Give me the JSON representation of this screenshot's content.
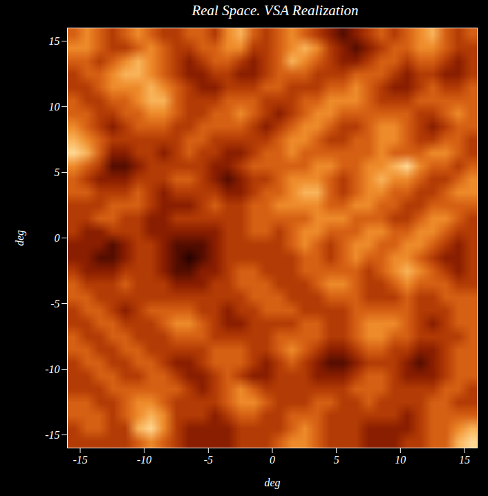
{
  "chart_data": {
    "type": "heatmap",
    "title": "Real Space. VSA Realization",
    "xlabel": "deg",
    "ylabel": "deg",
    "xlim": [
      -16,
      16
    ],
    "ylim": [
      -16,
      16
    ],
    "xticks": [
      -15,
      -10,
      -5,
      0,
      5,
      10,
      15
    ],
    "yticks": [
      -15,
      -10,
      -5,
      0,
      5,
      10,
      15
    ],
    "zlim": [
      0,
      9
    ],
    "cells": [
      [
        5,
        6,
        5,
        4,
        5,
        6,
        5,
        4,
        4,
        5,
        5,
        4,
        6,
        7,
        5,
        4,
        5,
        6,
        5,
        4,
        3,
        2,
        3,
        4,
        5,
        4,
        5,
        6,
        7,
        5,
        4,
        5
      ],
      [
        6,
        6,
        5,
        4,
        4,
        5,
        6,
        5,
        4,
        4,
        5,
        5,
        6,
        6,
        4,
        4,
        5,
        6,
        7,
        6,
        4,
        3,
        2,
        3,
        4,
        5,
        5,
        6,
        6,
        5,
        4,
        4
      ],
      [
        5,
        5,
        4,
        5,
        6,
        7,
        6,
        5,
        4,
        3,
        4,
        5,
        5,
        4,
        3,
        4,
        5,
        7,
        6,
        5,
        4,
        3,
        3,
        4,
        5,
        5,
        4,
        5,
        5,
        4,
        3,
        4
      ],
      [
        4,
        5,
        5,
        6,
        7,
        7,
        6,
        5,
        4,
        3,
        3,
        4,
        4,
        3,
        3,
        4,
        5,
        5,
        5,
        4,
        4,
        4,
        5,
        5,
        5,
        4,
        3,
        4,
        4,
        3,
        3,
        4
      ],
      [
        4,
        4,
        5,
        6,
        6,
        6,
        7,
        6,
        5,
        4,
        3,
        3,
        4,
        4,
        4,
        5,
        5,
        4,
        4,
        4,
        5,
        5,
        6,
        5,
        4,
        3,
        3,
        4,
        5,
        4,
        4,
        5
      ],
      [
        5,
        4,
        4,
        5,
        5,
        6,
        7,
        7,
        5,
        4,
        4,
        4,
        5,
        5,
        5,
        4,
        4,
        4,
        5,
        5,
        6,
        6,
        6,
        5,
        4,
        4,
        4,
        5,
        5,
        5,
        5,
        5
      ],
      [
        5,
        5,
        4,
        4,
        5,
        5,
        6,
        6,
        5,
        4,
        4,
        5,
        5,
        6,
        5,
        4,
        3,
        4,
        5,
        6,
        6,
        5,
        5,
        5,
        5,
        5,
        5,
        4,
        4,
        5,
        6,
        5
      ],
      [
        6,
        5,
        4,
        3,
        4,
        5,
        5,
        5,
        4,
        4,
        5,
        5,
        5,
        5,
        4,
        3,
        4,
        5,
        6,
        6,
        5,
        4,
        4,
        5,
        6,
        6,
        5,
        4,
        3,
        4,
        5,
        5
      ],
      [
        7,
        6,
        5,
        4,
        4,
        4,
        4,
        4,
        4,
        5,
        5,
        4,
        4,
        4,
        4,
        4,
        5,
        6,
        6,
        5,
        4,
        4,
        5,
        5,
        6,
        6,
        5,
        4,
        4,
        5,
        5,
        4
      ],
      [
        8,
        7,
        5,
        3,
        3,
        4,
        4,
        3,
        4,
        5,
        4,
        4,
        3,
        3,
        4,
        5,
        5,
        6,
        5,
        5,
        5,
        5,
        5,
        5,
        6,
        5,
        5,
        5,
        6,
        6,
        5,
        4
      ],
      [
        6,
        5,
        4,
        2,
        2,
        3,
        4,
        4,
        4,
        4,
        4,
        3,
        3,
        4,
        5,
        5,
        5,
        5,
        5,
        6,
        6,
        5,
        5,
        6,
        6,
        7,
        8,
        6,
        5,
        5,
        4,
        5
      ],
      [
        5,
        4,
        3,
        3,
        3,
        4,
        4,
        4,
        5,
        5,
        4,
        3,
        2,
        3,
        4,
        4,
        5,
        6,
        6,
        6,
        5,
        4,
        5,
        6,
        7,
        6,
        6,
        5,
        4,
        4,
        5,
        6
      ],
      [
        5,
        5,
        4,
        4,
        4,
        5,
        4,
        3,
        4,
        4,
        4,
        4,
        3,
        3,
        4,
        5,
        5,
        6,
        7,
        7,
        5,
        4,
        5,
        6,
        6,
        5,
        5,
        4,
        4,
        5,
        6,
        6
      ],
      [
        4,
        4,
        4,
        5,
        5,
        5,
        4,
        3,
        3,
        3,
        4,
        5,
        4,
        4,
        5,
        5,
        6,
        6,
        6,
        6,
        5,
        5,
        6,
        6,
        5,
        5,
        4,
        4,
        5,
        5,
        5,
        5
      ],
      [
        4,
        4,
        5,
        5,
        4,
        4,
        3,
        3,
        4,
        4,
        4,
        4,
        4,
        4,
        5,
        5,
        5,
        5,
        5,
        6,
        6,
        6,
        5,
        5,
        5,
        4,
        4,
        5,
        6,
        6,
        5,
        4
      ],
      [
        4,
        3,
        3,
        4,
        4,
        4,
        3,
        3,
        3,
        3,
        3,
        3,
        4,
        4,
        5,
        5,
        4,
        5,
        6,
        6,
        5,
        5,
        5,
        6,
        6,
        5,
        5,
        6,
        6,
        5,
        4,
        4
      ],
      [
        3,
        3,
        3,
        2,
        3,
        4,
        4,
        3,
        2,
        2,
        2,
        3,
        4,
        4,
        4,
        4,
        4,
        5,
        6,
        5,
        4,
        5,
        6,
        6,
        5,
        5,
        6,
        6,
        5,
        4,
        3,
        4
      ],
      [
        3,
        3,
        2,
        2,
        3,
        4,
        4,
        3,
        2,
        1,
        2,
        3,
        4,
        4,
        4,
        4,
        4,
        4,
        5,
        5,
        4,
        5,
        6,
        5,
        5,
        6,
        6,
        5,
        4,
        3,
        3,
        4
      ],
      [
        4,
        3,
        3,
        3,
        4,
        4,
        4,
        3,
        2,
        2,
        3,
        3,
        4,
        5,
        5,
        4,
        4,
        4,
        5,
        5,
        5,
        5,
        5,
        4,
        5,
        6,
        7,
        6,
        5,
        4,
        3,
        4
      ],
      [
        5,
        4,
        4,
        4,
        5,
        4,
        4,
        4,
        3,
        3,
        3,
        4,
        4,
        5,
        5,
        5,
        4,
        4,
        4,
        5,
        6,
        6,
        5,
        4,
        4,
        5,
        6,
        5,
        5,
        5,
        4,
        4
      ],
      [
        5,
        5,
        4,
        4,
        4,
        4,
        4,
        4,
        4,
        4,
        4,
        4,
        4,
        4,
        5,
        5,
        5,
        4,
        4,
        4,
        5,
        5,
        5,
        4,
        4,
        4,
        5,
        4,
        4,
        5,
        5,
        5
      ],
      [
        4,
        5,
        5,
        4,
        3,
        4,
        5,
        5,
        5,
        5,
        4,
        4,
        3,
        4,
        4,
        5,
        5,
        5,
        4,
        4,
        4,
        4,
        5,
        5,
        5,
        5,
        5,
        4,
        4,
        4,
        5,
        5
      ],
      [
        4,
        4,
        5,
        5,
        4,
        4,
        4,
        5,
        6,
        6,
        5,
        4,
        3,
        3,
        4,
        4,
        4,
        4,
        5,
        5,
        4,
        4,
        5,
        6,
        6,
        6,
        5,
        4,
        3,
        4,
        5,
        5
      ],
      [
        5,
        4,
        4,
        5,
        5,
        4,
        4,
        4,
        5,
        5,
        5,
        4,
        4,
        4,
        4,
        4,
        5,
        5,
        5,
        5,
        4,
        4,
        5,
        6,
        6,
        5,
        5,
        4,
        4,
        4,
        4,
        5
      ],
      [
        5,
        5,
        4,
        4,
        5,
        5,
        4,
        4,
        4,
        4,
        4,
        5,
        5,
        5,
        4,
        4,
        5,
        6,
        5,
        4,
        3,
        3,
        4,
        5,
        5,
        4,
        4,
        3,
        3,
        4,
        5,
        5
      ],
      [
        4,
        5,
        5,
        4,
        4,
        5,
        5,
        4,
        3,
        3,
        4,
        5,
        5,
        5,
        4,
        3,
        4,
        5,
        4,
        3,
        2,
        2,
        3,
        4,
        4,
        4,
        3,
        2,
        3,
        4,
        5,
        5
      ],
      [
        4,
        4,
        5,
        5,
        4,
        4,
        5,
        5,
        4,
        3,
        3,
        4,
        5,
        4,
        3,
        3,
        4,
        4,
        4,
        3,
        3,
        3,
        4,
        5,
        5,
        4,
        3,
        3,
        3,
        4,
        5,
        5
      ],
      [
        4,
        4,
        4,
        5,
        5,
        5,
        5,
        5,
        5,
        4,
        3,
        4,
        5,
        6,
        5,
        4,
        4,
        4,
        4,
        4,
        4,
        4,
        5,
        5,
        5,
        4,
        4,
        4,
        4,
        5,
        5,
        4
      ],
      [
        5,
        5,
        4,
        4,
        5,
        6,
        6,
        5,
        4,
        4,
        4,
        4,
        5,
        6,
        6,
        5,
        4,
        4,
        4,
        5,
        5,
        4,
        4,
        5,
        4,
        4,
        4,
        4,
        5,
        5,
        4,
        4
      ],
      [
        5,
        5,
        5,
        4,
        5,
        6,
        7,
        6,
        4,
        4,
        4,
        3,
        4,
        5,
        5,
        4,
        4,
        5,
        5,
        5,
        4,
        4,
        4,
        4,
        4,
        4,
        3,
        4,
        5,
        5,
        5,
        5
      ],
      [
        4,
        5,
        5,
        4,
        4,
        7,
        8,
        6,
        4,
        3,
        3,
        3,
        3,
        4,
        4,
        4,
        4,
        5,
        6,
        5,
        4,
        4,
        4,
        3,
        3,
        3,
        3,
        4,
        5,
        5,
        6,
        7
      ],
      [
        4,
        4,
        4,
        4,
        4,
        5,
        6,
        5,
        4,
        3,
        3,
        3,
        3,
        4,
        4,
        4,
        5,
        6,
        6,
        5,
        4,
        4,
        4,
        3,
        3,
        3,
        4,
        4,
        5,
        5,
        7,
        8
      ]
    ]
  }
}
